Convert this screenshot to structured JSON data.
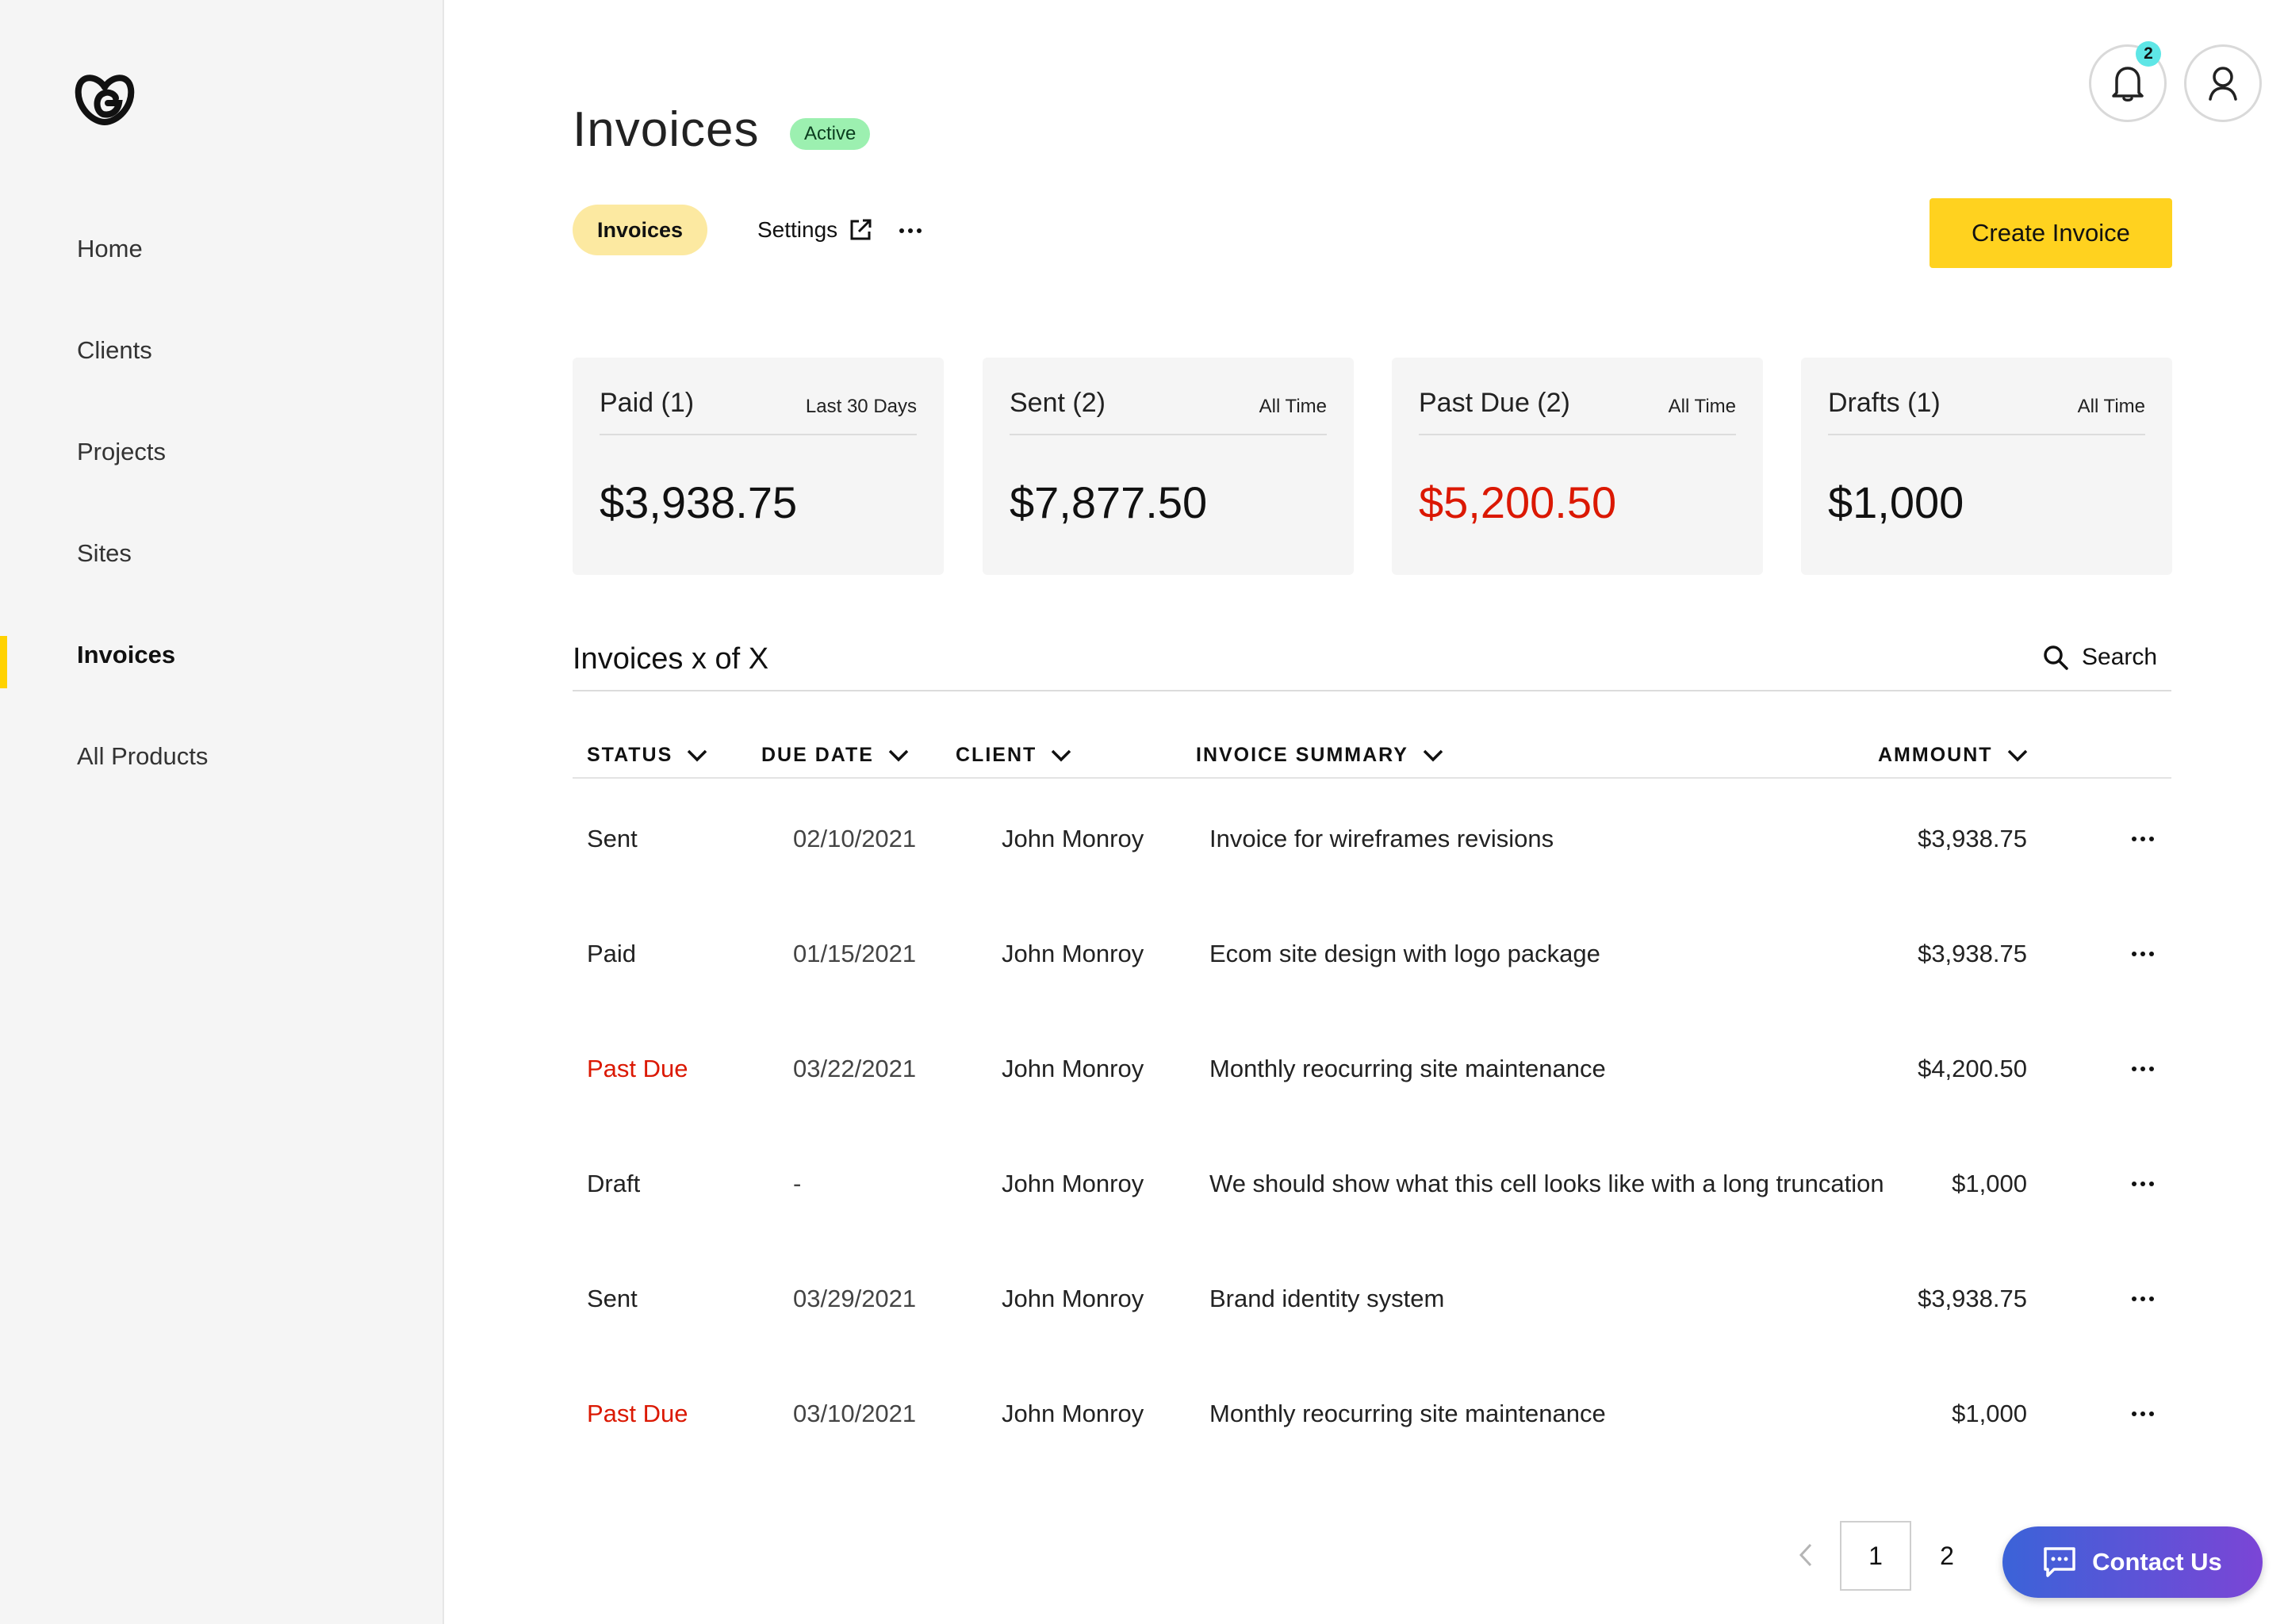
{
  "sidebar": {
    "logo": "godaddy-logo-icon",
    "items": [
      {
        "label": "Home"
      },
      {
        "label": "Clients"
      },
      {
        "label": "Projects"
      },
      {
        "label": "Sites"
      },
      {
        "label": "Invoices",
        "active": true
      },
      {
        "label": "All Products"
      }
    ]
  },
  "header": {
    "title": "Invoices",
    "status_badge": "Active",
    "tabs": [
      {
        "label": "Invoices",
        "selected": true
      },
      {
        "label": "Settings",
        "icon": "external-link-icon"
      }
    ],
    "more_icon": "more-horizontal-icon",
    "create_button": "Create Invoice",
    "notifications_count": "2",
    "notification_icon": "bell-icon",
    "user_icon": "user-icon"
  },
  "cards": [
    {
      "title": "Paid (1)",
      "period": "Last 30 Days",
      "amount": "$3,938.75"
    },
    {
      "title": "Sent (2)",
      "period": "All Time",
      "amount": "$7,877.50"
    },
    {
      "title": "Past Due (2)",
      "period": "All Time",
      "amount": "$5,200.50",
      "highlight": "#db1802"
    },
    {
      "title": "Drafts (1)",
      "period": "All Time",
      "amount": "$1,000"
    }
  ],
  "list": {
    "title": "Invoices x of X",
    "search_label": "Search",
    "columns": [
      "STATUS",
      "DUE DATE",
      "CLIENT",
      "INVOICE SUMMARY",
      "AMMOUNT"
    ],
    "rows": [
      {
        "status": "Sent",
        "due_date": "02/10/2021",
        "client": "John Monroy",
        "summary": "Invoice for wireframes revisions",
        "amount": "$3,938.75"
      },
      {
        "status": "Paid",
        "due_date": "01/15/2021",
        "client": "John Monroy",
        "summary": "Ecom site design with logo package",
        "amount": "$3,938.75"
      },
      {
        "status": "Past Due",
        "due_date": "03/22/2021",
        "client": "John Monroy",
        "summary": "Monthly reocurring site maintenance",
        "amount": "$4,200.50"
      },
      {
        "status": "Draft",
        "due_date": "-",
        "client": "John Monroy",
        "summary": "We should show what this cell looks like with a long truncation",
        "amount": "$1,000"
      },
      {
        "status": "Sent",
        "due_date": "03/29/2021",
        "client": "John Monroy",
        "summary": "Brand identity system",
        "amount": "$3,938.75"
      },
      {
        "status": "Past Due",
        "due_date": "03/10/2021",
        "client": "John Monroy",
        "summary": "Monthly reocurring site maintenance",
        "amount": "$1,000"
      }
    ]
  },
  "pagination": {
    "current": "1",
    "next": "2"
  },
  "contact_button": "Contact Us",
  "colors": {
    "accent": "#ffd21f",
    "past_due": "#db1802",
    "active_badge": "#9cf0b0",
    "selected_tab": "#fce9a1"
  }
}
